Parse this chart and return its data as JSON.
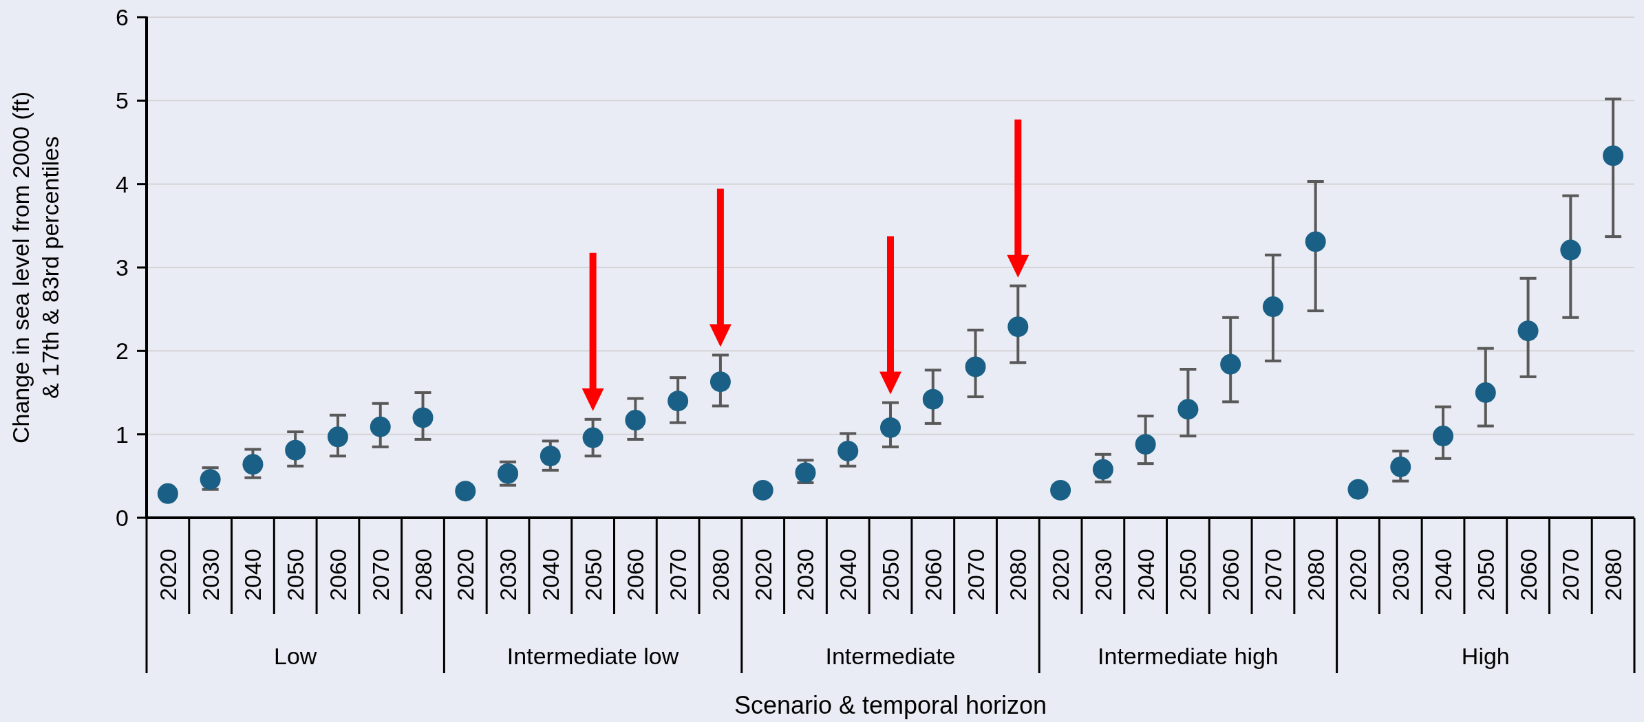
{
  "chart_data": {
    "type": "scatter",
    "ylabel": "Change in sea level from 2000 (ft)\n& 17th & 83rd percentiles",
    "xlabel": "Scenario & temporal horizon",
    "categories": [
      "2020",
      "2030",
      "2040",
      "2050",
      "2060",
      "2070",
      "2080",
      "2020",
      "2030",
      "2040",
      "2050",
      "2060",
      "2070",
      "2080",
      "2020",
      "2030",
      "2040",
      "2050",
      "2060",
      "2070",
      "2080",
      "2020",
      "2030",
      "2040",
      "2050",
      "2060",
      "2070",
      "2080",
      "2020",
      "2030",
      "2040",
      "2050",
      "2060",
      "2070",
      "2080"
    ],
    "annotations": [
      "Low",
      "Intermediate low",
      "Intermediate",
      "Intermediate high",
      "High"
    ],
    "series": [
      {
        "color": "#1a5f85",
        "values": [
          0.29,
          0.46,
          0.64,
          0.81,
          0.97,
          1.09,
          1.2,
          0.32,
          0.53,
          0.74,
          0.96,
          1.17,
          1.4,
          1.63,
          0.33,
          0.54,
          0.8,
          1.08,
          1.42,
          1.81,
          2.29,
          0.33,
          0.58,
          0.88,
          1.3,
          1.84,
          2.53,
          3.31,
          0.34,
          0.61,
          0.98,
          1.5,
          2.24,
          3.21,
          4.34
        ],
        "errors": [
          null,
          [
            0.34,
            0.6
          ],
          [
            0.48,
            0.82
          ],
          [
            0.62,
            1.03
          ],
          [
            0.74,
            1.23
          ],
          [
            0.85,
            1.37
          ],
          [
            0.94,
            1.5
          ],
          null,
          [
            0.39,
            0.67
          ],
          [
            0.57,
            0.92
          ],
          [
            0.74,
            1.18
          ],
          [
            0.94,
            1.43
          ],
          [
            1.14,
            1.68
          ],
          [
            1.34,
            1.95
          ],
          null,
          [
            0.42,
            0.69
          ],
          [
            0.62,
            1.01
          ],
          [
            0.85,
            1.38
          ],
          [
            1.13,
            1.77
          ],
          [
            1.45,
            2.25
          ],
          [
            1.86,
            2.78
          ],
          null,
          [
            0.43,
            0.76
          ],
          [
            0.65,
            1.22
          ],
          [
            0.98,
            1.78
          ],
          [
            1.39,
            2.4
          ],
          [
            1.88,
            3.15
          ],
          [
            2.48,
            4.03
          ],
          null,
          [
            0.44,
            0.8
          ],
          [
            0.71,
            1.33
          ],
          [
            1.1,
            2.03
          ],
          [
            1.69,
            2.87
          ],
          [
            2.4,
            3.86
          ],
          [
            3.37,
            5.02
          ]
        ]
      }
    ],
    "ylim": [
      0,
      6
    ],
    "yticks": [
      0,
      1,
      2,
      3,
      4,
      5,
      6
    ],
    "grid": "y",
    "marker": "circle"
  }
}
